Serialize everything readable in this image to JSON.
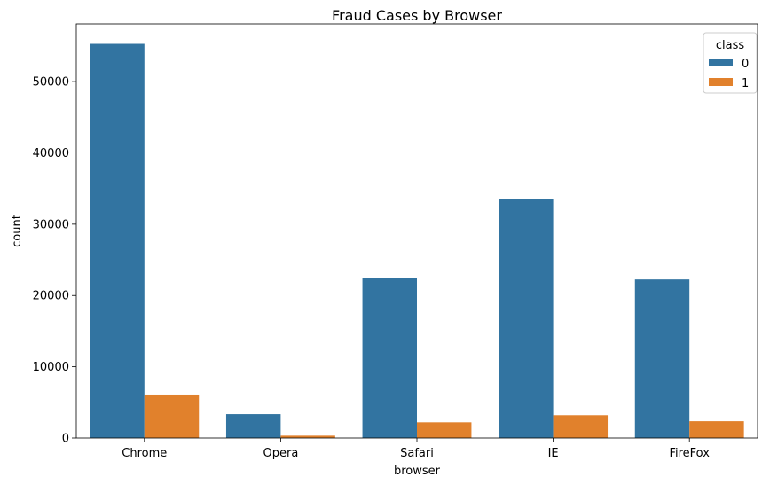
{
  "chart_data": {
    "type": "bar",
    "title": "Fraud Cases by Browser",
    "xlabel": "browser",
    "ylabel": "count",
    "categories": [
      "Chrome",
      "Opera",
      "Safari",
      "IE",
      "FireFox"
    ],
    "series": [
      {
        "name": "0",
        "color": "#3274a1",
        "values": [
          55300,
          3350,
          22500,
          33550,
          22250
        ]
      },
      {
        "name": "1",
        "color": "#e1812c",
        "values": [
          6100,
          330,
          2200,
          3200,
          2350
        ]
      }
    ],
    "ylim": [
      0,
      58100
    ],
    "yticks": [
      0,
      10000,
      20000,
      30000,
      40000,
      50000
    ],
    "legend": {
      "title": "class",
      "placement": "top-right"
    },
    "grid": false
  }
}
